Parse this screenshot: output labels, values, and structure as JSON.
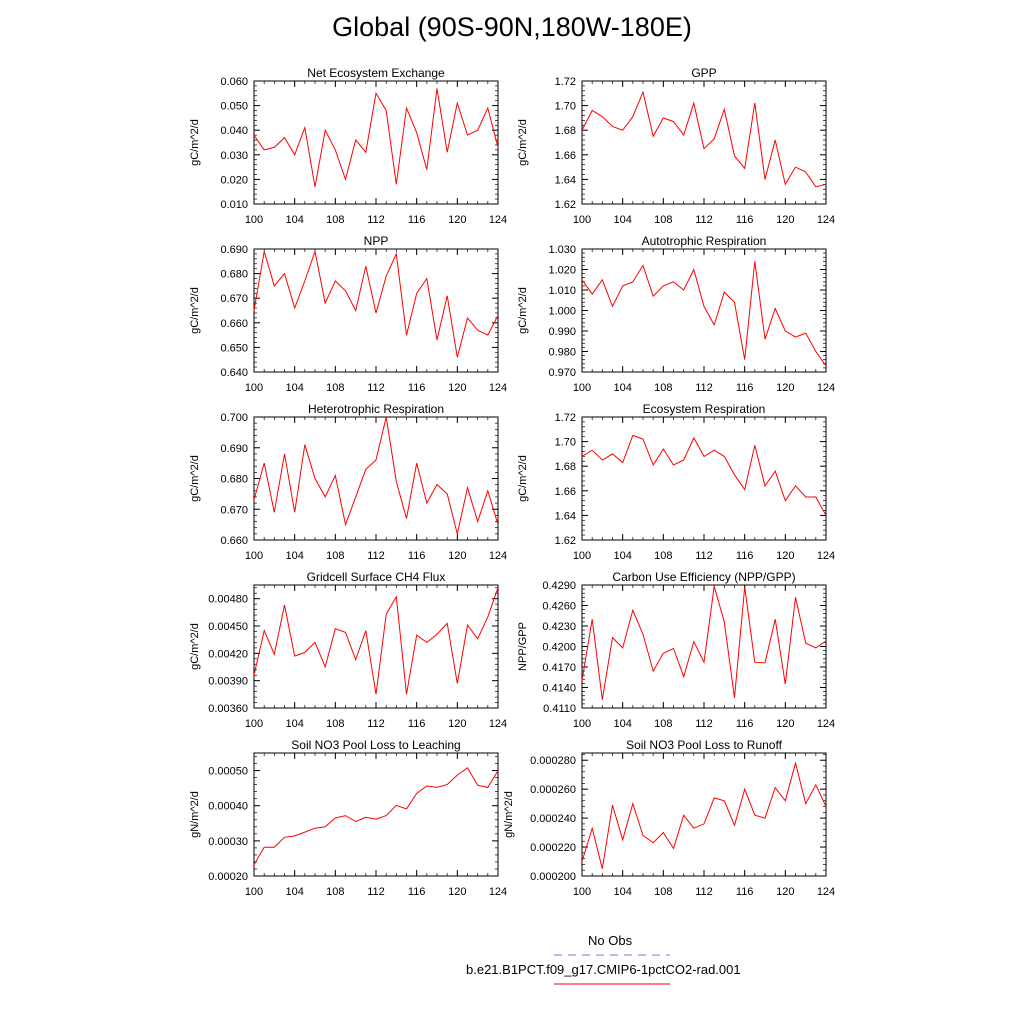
{
  "page_title": "Global (90S-90N,180W-180E)",
  "legend": {
    "entries": [
      {
        "label": "No Obs",
        "color": "#7878e6",
        "dash": true
      },
      {
        "label": "b.e21.B1PCT.f09_g17.CMIP6-1pctCO2-rad.001",
        "color": "#ff0000",
        "dash": false
      }
    ]
  },
  "series_color": "#ff0000",
  "chart_data": [
    {
      "type": "line",
      "title": "Net Ecosystem Exchange",
      "xlabel": "",
      "ylabel": "gC/m^2/d",
      "xlim": [
        100,
        124
      ],
      "ylim": [
        0.01,
        0.06
      ],
      "xticks": [
        100,
        104,
        108,
        112,
        116,
        120,
        124
      ],
      "yticks": [
        "0.010",
        "0.020",
        "0.030",
        "0.040",
        "0.050",
        "0.060"
      ],
      "x": [
        100,
        101,
        102,
        103,
        104,
        105,
        106,
        107,
        108,
        109,
        110,
        111,
        112,
        113,
        114,
        115,
        116,
        117,
        118,
        119,
        120,
        121,
        122,
        123,
        124
      ],
      "values": [
        0.038,
        0.032,
        0.033,
        0.037,
        0.03,
        0.041,
        0.017,
        0.04,
        0.032,
        0.02,
        0.036,
        0.031,
        0.055,
        0.048,
        0.018,
        0.049,
        0.039,
        0.024,
        0.057,
        0.031,
        0.051,
        0.038,
        0.04,
        0.049,
        0.033
      ]
    },
    {
      "type": "line",
      "title": "GPP",
      "xlabel": "",
      "ylabel": "gC/m^2/d",
      "xlim": [
        100,
        124
      ],
      "ylim": [
        1.62,
        1.72
      ],
      "xticks": [
        100,
        104,
        108,
        112,
        116,
        120,
        124
      ],
      "yticks": [
        "1.62",
        "1.64",
        "1.66",
        "1.68",
        "1.70",
        "1.72"
      ],
      "x": [
        100,
        101,
        102,
        103,
        104,
        105,
        106,
        107,
        108,
        109,
        110,
        111,
        112,
        113,
        114,
        115,
        116,
        117,
        118,
        119,
        120,
        121,
        122,
        123,
        124
      ],
      "values": [
        1.68,
        1.696,
        1.691,
        1.683,
        1.68,
        1.691,
        1.711,
        1.675,
        1.69,
        1.687,
        1.676,
        1.702,
        1.665,
        1.673,
        1.697,
        1.659,
        1.649,
        1.702,
        1.64,
        1.672,
        1.636,
        1.65,
        1.646,
        1.634,
        1.636
      ]
    },
    {
      "type": "line",
      "title": "NPP",
      "xlabel": "",
      "ylabel": "gC/m^2/d",
      "xlim": [
        100,
        124
      ],
      "ylim": [
        0.64,
        0.69
      ],
      "xticks": [
        100,
        104,
        108,
        112,
        116,
        120,
        124
      ],
      "yticks": [
        "0.640",
        "0.650",
        "0.660",
        "0.670",
        "0.680",
        "0.690"
      ],
      "x": [
        100,
        101,
        102,
        103,
        104,
        105,
        106,
        107,
        108,
        109,
        110,
        111,
        112,
        113,
        114,
        115,
        116,
        117,
        118,
        119,
        120,
        121,
        122,
        123,
        124
      ],
      "values": [
        0.665,
        0.689,
        0.675,
        0.68,
        0.666,
        0.677,
        0.689,
        0.668,
        0.677,
        0.673,
        0.665,
        0.683,
        0.664,
        0.679,
        0.688,
        0.655,
        0.672,
        0.678,
        0.653,
        0.671,
        0.646,
        0.662,
        0.657,
        0.655,
        0.663
      ]
    },
    {
      "type": "line",
      "title": "Autotrophic Respiration",
      "xlabel": "",
      "ylabel": "gC/m^2/d",
      "xlim": [
        100,
        124
      ],
      "ylim": [
        0.97,
        1.03
      ],
      "xticks": [
        100,
        104,
        108,
        112,
        116,
        120,
        124
      ],
      "yticks": [
        "0.970",
        "0.980",
        "0.990",
        "1.000",
        "1.010",
        "1.020",
        "1.030"
      ],
      "x": [
        100,
        101,
        102,
        103,
        104,
        105,
        106,
        107,
        108,
        109,
        110,
        111,
        112,
        113,
        114,
        115,
        116,
        117,
        118,
        119,
        120,
        121,
        122,
        123,
        124
      ],
      "values": [
        1.015,
        1.008,
        1.015,
        1.002,
        1.012,
        1.014,
        1.022,
        1.007,
        1.012,
        1.014,
        1.01,
        1.02,
        1.002,
        0.993,
        1.009,
        1.004,
        0.976,
        1.024,
        0.986,
        1.001,
        0.99,
        0.987,
        0.989,
        0.98,
        0.973
      ]
    },
    {
      "type": "line",
      "title": "Heterotrophic Respiration",
      "xlabel": "",
      "ylabel": "gC/m^2/d",
      "xlim": [
        100,
        124
      ],
      "ylim": [
        0.66,
        0.7
      ],
      "xticks": [
        100,
        104,
        108,
        112,
        116,
        120,
        124
      ],
      "yticks": [
        "0.660",
        "0.670",
        "0.680",
        "0.690",
        "0.700"
      ],
      "x": [
        100,
        101,
        102,
        103,
        104,
        105,
        106,
        107,
        108,
        109,
        110,
        111,
        112,
        113,
        114,
        115,
        116,
        117,
        118,
        119,
        120,
        121,
        122,
        123,
        124
      ],
      "values": [
        0.673,
        0.685,
        0.669,
        0.688,
        0.669,
        0.691,
        0.68,
        0.674,
        0.681,
        0.665,
        0.674,
        0.683,
        0.686,
        0.7,
        0.679,
        0.667,
        0.685,
        0.672,
        0.678,
        0.675,
        0.662,
        0.677,
        0.666,
        0.676,
        0.665
      ]
    },
    {
      "type": "line",
      "title": "Ecosystem Respiration",
      "xlabel": "",
      "ylabel": "gC/m^2/d",
      "xlim": [
        100,
        124
      ],
      "ylim": [
        1.62,
        1.72
      ],
      "xticks": [
        100,
        104,
        108,
        112,
        116,
        120,
        124
      ],
      "yticks": [
        "1.62",
        "1.64",
        "1.66",
        "1.68",
        "1.70",
        "1.72"
      ],
      "x": [
        100,
        101,
        102,
        103,
        104,
        105,
        106,
        107,
        108,
        109,
        110,
        111,
        112,
        113,
        114,
        115,
        116,
        117,
        118,
        119,
        120,
        121,
        122,
        123,
        124
      ],
      "values": [
        1.688,
        1.693,
        1.685,
        1.69,
        1.683,
        1.705,
        1.702,
        1.681,
        1.694,
        1.681,
        1.685,
        1.703,
        1.688,
        1.693,
        1.688,
        1.673,
        1.661,
        1.697,
        1.664,
        1.676,
        1.652,
        1.664,
        1.655,
        1.655,
        1.64
      ]
    },
    {
      "type": "line",
      "title": "Gridcell Surface CH4 Flux",
      "xlabel": "",
      "ylabel": "gC/m^2/d",
      "xlim": [
        100,
        124
      ],
      "ylim": [
        0.0036,
        0.00495
      ],
      "xticks": [
        100,
        104,
        108,
        112,
        116,
        120,
        124
      ],
      "yticks": [
        "0.00360",
        "0.00390",
        "0.00420",
        "0.00450",
        "0.00480"
      ],
      "x": [
        100,
        101,
        102,
        103,
        104,
        105,
        106,
        107,
        108,
        109,
        110,
        111,
        112,
        113,
        114,
        115,
        116,
        117,
        118,
        119,
        120,
        121,
        122,
        123,
        124
      ],
      "values": [
        0.00396,
        0.00445,
        0.00419,
        0.00473,
        0.00417,
        0.00421,
        0.00432,
        0.00405,
        0.00447,
        0.00443,
        0.00413,
        0.00445,
        0.00375,
        0.00463,
        0.00482,
        0.00375,
        0.0044,
        0.00432,
        0.00441,
        0.00453,
        0.00387,
        0.00451,
        0.00436,
        0.0046,
        0.00492
      ]
    },
    {
      "type": "line",
      "title": "Carbon Use Efficiency (NPP/GPP)",
      "xlabel": "",
      "ylabel": "NPP/GPP",
      "xlim": [
        100,
        124
      ],
      "ylim": [
        0.411,
        0.429
      ],
      "xticks": [
        100,
        104,
        108,
        112,
        116,
        120,
        124
      ],
      "yticks": [
        "0.4110",
        "0.4140",
        "0.4170",
        "0.4200",
        "0.4230",
        "0.4260",
        "0.4290"
      ],
      "x": [
        100,
        101,
        102,
        103,
        104,
        105,
        106,
        107,
        108,
        109,
        110,
        111,
        112,
        113,
        114,
        115,
        116,
        117,
        118,
        119,
        120,
        121,
        122,
        123,
        124
      ],
      "values": [
        0.415,
        0.424,
        0.4122,
        0.4213,
        0.4198,
        0.4253,
        0.4218,
        0.4164,
        0.419,
        0.4197,
        0.4156,
        0.4207,
        0.4177,
        0.4288,
        0.4236,
        0.4125,
        0.4287,
        0.4177,
        0.4176,
        0.424,
        0.4145,
        0.4272,
        0.4205,
        0.4198,
        0.4208
      ]
    },
    {
      "type": "line",
      "title": "Soil NO3 Pool Loss to Leaching",
      "xlabel": "",
      "ylabel": "gN/m^2/d",
      "xlim": [
        100,
        124
      ],
      "ylim": [
        0.0002,
        0.00055
      ],
      "xticks": [
        100,
        104,
        108,
        112,
        116,
        120,
        124
      ],
      "yticks": [
        "0.00020",
        "0.00030",
        "0.00040",
        "0.00050"
      ],
      "x": [
        100,
        101,
        102,
        103,
        104,
        105,
        106,
        107,
        108,
        109,
        110,
        111,
        112,
        113,
        114,
        115,
        116,
        117,
        118,
        119,
        120,
        121,
        122,
        123,
        124
      ],
      "values": [
        0.000232,
        0.000282,
        0.000282,
        0.00031,
        0.000314,
        0.000325,
        0.000336,
        0.00034,
        0.000365,
        0.000372,
        0.000355,
        0.000367,
        0.000362,
        0.000372,
        0.000401,
        0.000391,
        0.000435,
        0.000456,
        0.000452,
        0.00046,
        0.000487,
        0.000508,
        0.000458,
        0.000452,
        0.0005
      ]
    },
    {
      "type": "line",
      "title": "Soil NO3 Pool Loss to Runoff",
      "xlabel": "",
      "ylabel": "gN/m^2/d",
      "xlim": [
        100,
        124
      ],
      "ylim": [
        0.0002,
        0.000285
      ],
      "xticks": [
        100,
        104,
        108,
        112,
        116,
        120,
        124
      ],
      "yticks": [
        "0.000200",
        "0.000220",
        "0.000240",
        "0.000260",
        "0.000280"
      ],
      "x": [
        100,
        101,
        102,
        103,
        104,
        105,
        106,
        107,
        108,
        109,
        110,
        111,
        112,
        113,
        114,
        115,
        116,
        117,
        118,
        119,
        120,
        121,
        122,
        123,
        124
      ],
      "values": [
        0.00021,
        0.000233,
        0.000205,
        0.000249,
        0.000225,
        0.00025,
        0.000228,
        0.000223,
        0.00023,
        0.000219,
        0.000242,
        0.000233,
        0.000236,
        0.000254,
        0.000252,
        0.000235,
        0.00026,
        0.000242,
        0.00024,
        0.000261,
        0.000252,
        0.000278,
        0.00025,
        0.000263,
        0.000248
      ]
    }
  ]
}
